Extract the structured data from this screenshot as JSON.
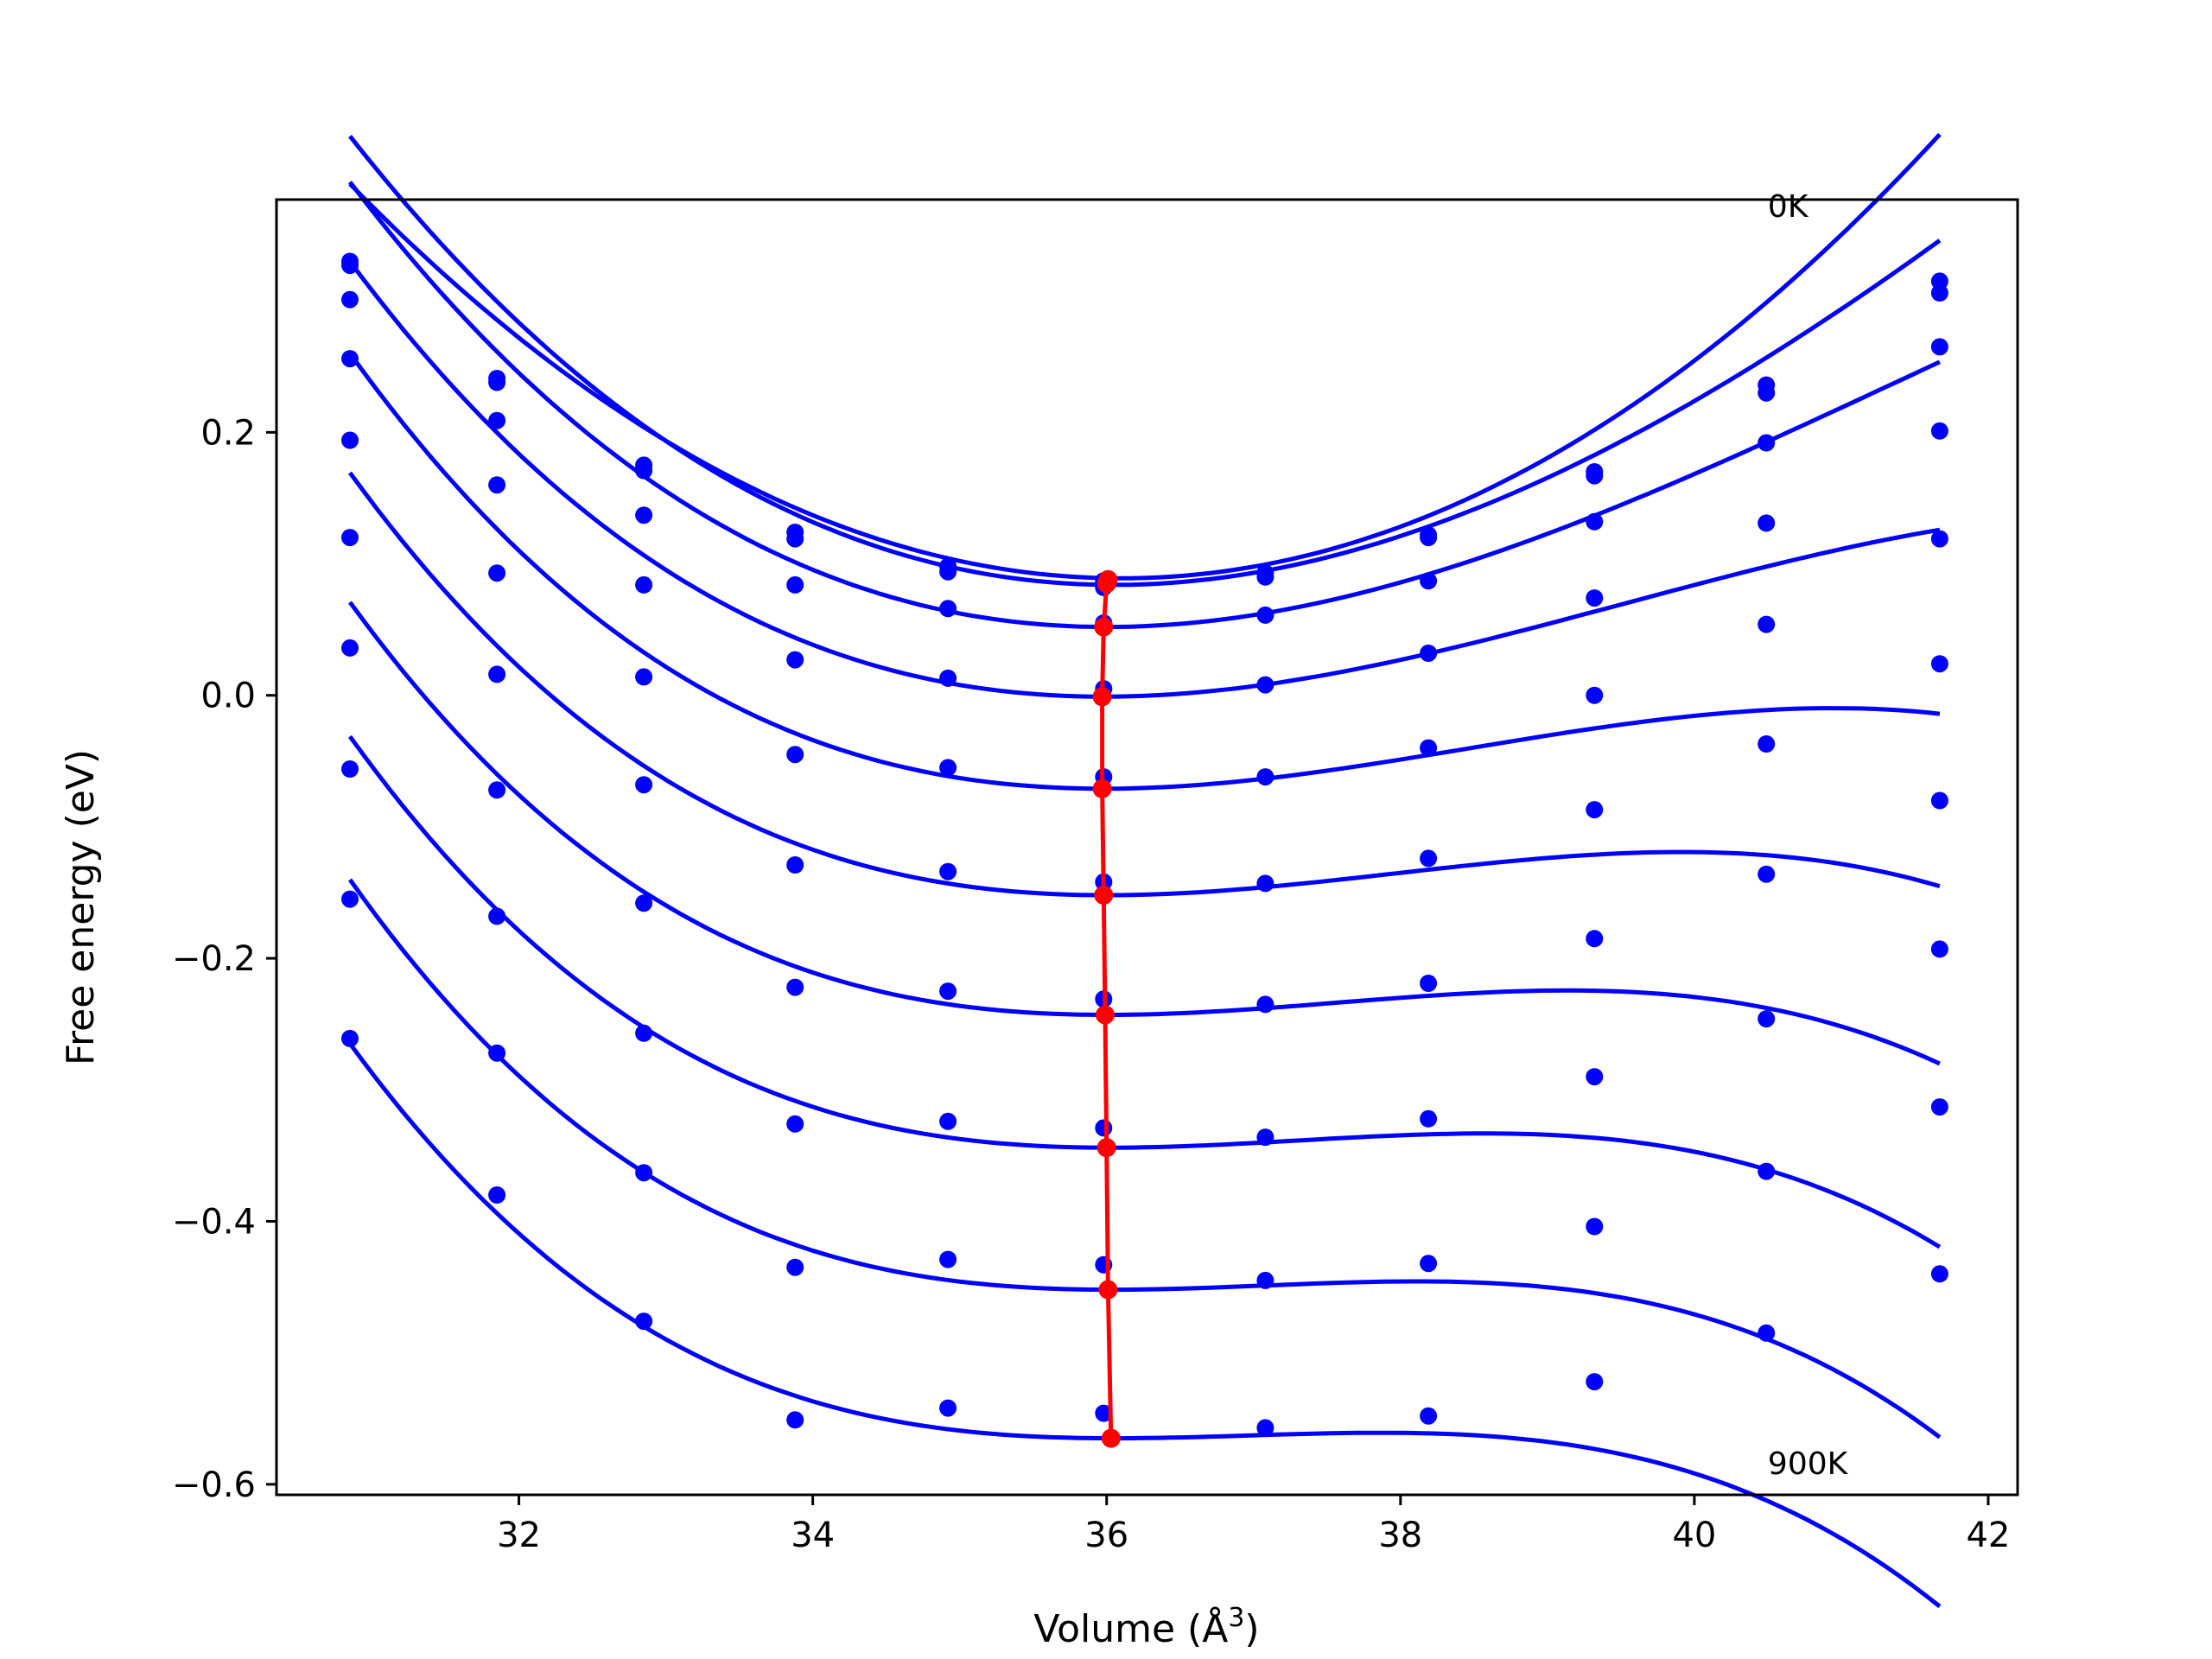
{
  "chart_data": {
    "type": "line",
    "xlabel": "Volume (Å",
    "xlabel_sup": "3",
    "xlabel_close": ")",
    "ylabel": "Free energy (eV)",
    "xlim": [
      30.35,
      42.2
    ],
    "ylim": [
      -0.608,
      0.377
    ],
    "x_ticks": [
      32,
      34,
      36,
      38,
      40,
      42
    ],
    "x_tick_labels": [
      "32",
      "34",
      "36",
      "38",
      "40",
      "42"
    ],
    "y_ticks": [
      -0.6,
      -0.4,
      -0.2,
      0.0,
      0.2
    ],
    "y_tick_labels": [
      "−0.6",
      "−0.4",
      "−0.2",
      "0.0",
      "0.2"
    ],
    "grid": false,
    "annotations": [
      {
        "text": "0K",
        "x": 40.5,
        "y": 0.373
      },
      {
        "text": "900K",
        "x": 40.5,
        "y": -0.583
      }
    ],
    "colors": {
      "data": "#0000ff",
      "equilibrium": "#ff0000"
    },
    "volumes": [
      30.85,
      31.85,
      32.85,
      33.88,
      34.92,
      35.98,
      37.08,
      38.19,
      39.32,
      40.49,
      41.67
    ],
    "series": [
      {
        "values": [
          0.33,
          0.241,
          0.175,
          0.124,
          0.098,
          0.087,
          0.093,
          0.122,
          0.17,
          0.236,
          0.315
        ]
      },
      {
        "values": [
          0.327,
          0.238,
          0.171,
          0.119,
          0.094,
          0.082,
          0.09,
          0.12,
          0.167,
          0.23,
          0.306
        ]
      },
      {
        "values": [
          0.301,
          0.209,
          0.137,
          0.084,
          0.066,
          0.055,
          0.061,
          0.087,
          0.132,
          0.192,
          0.265
        ]
      },
      {
        "values": [
          0.256,
          0.16,
          0.084,
          0.027,
          0.013,
          0.005,
          0.008,
          0.032,
          0.074,
          0.131,
          0.201
        ]
      },
      {
        "values": [
          0.194,
          0.093,
          0.014,
          -0.045,
          -0.055,
          -0.062,
          -0.062,
          -0.04,
          0.0,
          0.054,
          0.119
        ]
      },
      {
        "values": [
          0.12,
          0.016,
          -0.068,
          -0.129,
          -0.134,
          -0.142,
          -0.143,
          -0.124,
          -0.087,
          -0.037,
          0.024
        ]
      },
      {
        "values": [
          0.036,
          -0.072,
          -0.158,
          -0.222,
          -0.225,
          -0.231,
          -0.235,
          -0.219,
          -0.185,
          -0.136,
          -0.08
        ]
      },
      {
        "values": [
          -0.056,
          -0.168,
          -0.257,
          -0.326,
          -0.324,
          -0.329,
          -0.336,
          -0.322,
          -0.29,
          -0.246,
          -0.193
        ]
      },
      {
        "values": [
          -0.155,
          -0.272,
          -0.363,
          -0.435,
          -0.429,
          -0.433,
          -0.445,
          -0.432,
          -0.404,
          -0.362,
          -0.313
        ]
      },
      {
        "values": [
          -0.261,
          -0.38,
          -0.476,
          -0.551,
          -0.542,
          -0.546,
          -0.557,
          -0.548,
          -0.522,
          -0.485,
          -0.44
        ]
      }
    ],
    "fit_curves": [
      {
        "x_min": 30.85,
        "x_max": 41.67,
        "v0": 36.1,
        "e0": 0.089,
        "a": 0.01088,
        "b": 0.0
      },
      {
        "x_min": 30.85,
        "x_max": 41.67,
        "v0": 36.05,
        "e0": 0.084,
        "a": 0.01054,
        "b": -0.0004
      },
      {
        "x_min": 30.85,
        "x_max": 41.67,
        "v0": 36.0,
        "e0": 0.052,
        "a": 0.00967,
        "b": -0.0006
      },
      {
        "x_min": 30.85,
        "x_max": 41.67,
        "v0": 35.98,
        "e0": -0.001,
        "a": 0.00847,
        "b": -0.0008
      },
      {
        "x_min": 30.85,
        "x_max": 41.67,
        "v0": 35.98,
        "e0": -0.071,
        "a": 0.00745,
        "b": -0.001
      },
      {
        "x_min": 30.85,
        "x_max": 41.67,
        "v0": 36.0,
        "e0": -0.152,
        "a": 0.00645,
        "b": -0.0011
      },
      {
        "x_min": 30.85,
        "x_max": 41.67,
        "v0": 36.0,
        "e0": -0.243,
        "a": 0.00565,
        "b": -0.0012
      },
      {
        "x_min": 30.85,
        "x_max": 41.67,
        "v0": 36.02,
        "e0": -0.344,
        "a": 0.00498,
        "b": -0.0013
      },
      {
        "x_min": 30.85,
        "x_max": 41.67,
        "v0": 36.03,
        "e0": -0.452,
        "a": 0.00437,
        "b": -0.0014
      },
      {
        "x_min": 30.85,
        "x_max": 41.67,
        "v0": 36.05,
        "e0": -0.565,
        "a": 0.00382,
        "b": -0.0014
      }
    ],
    "equilibrium_line": [
      {
        "x": 36.01,
        "y": 0.088
      },
      {
        "x": 36.0,
        "y": 0.085
      },
      {
        "x": 35.98,
        "y": 0.052
      },
      {
        "x": 35.97,
        "y": -0.001
      },
      {
        "x": 35.97,
        "y": -0.071
      },
      {
        "x": 35.98,
        "y": -0.152
      },
      {
        "x": 35.99,
        "y": -0.243
      },
      {
        "x": 36.0,
        "y": -0.344
      },
      {
        "x": 36.01,
        "y": -0.452
      },
      {
        "x": 36.03,
        "y": -0.565
      }
    ]
  }
}
